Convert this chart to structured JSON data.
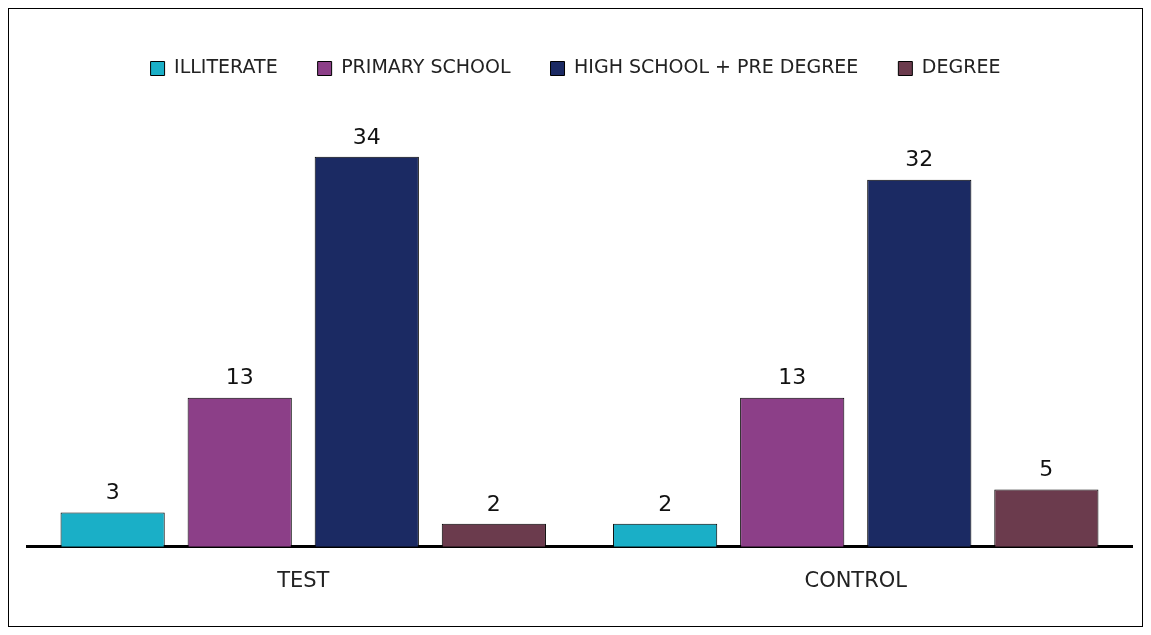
{
  "chart_data": {
    "type": "bar",
    "categories": [
      "TEST",
      "CONTROL"
    ],
    "series": [
      {
        "name": "ILLITERATE",
        "color": "#1aafc7",
        "values": [
          3,
          2
        ]
      },
      {
        "name": "PRIMARY SCHOOL",
        "color": "#8c3f88",
        "values": [
          13,
          13
        ]
      },
      {
        "name": "HIGH SCHOOL + PRE DEGREE",
        "color": "#1b2a63",
        "values": [
          34,
          32
        ]
      },
      {
        "name": "DEGREE",
        "color": "#6b3b4d",
        "values": [
          2,
          5
        ]
      }
    ],
    "data_labels": true,
    "legend": "top",
    "grid": false,
    "tick_labels": "x"
  }
}
